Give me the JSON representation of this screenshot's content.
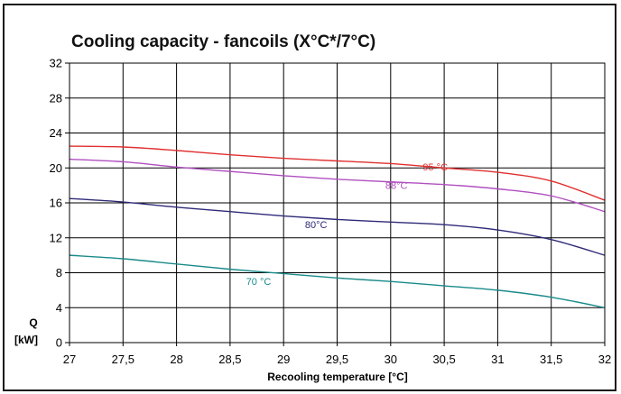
{
  "chart_data": {
    "type": "line",
    "title": "Cooling capacity - fancoils (X°C*/7°C)",
    "xlabel": "Recooling temperature [°C]",
    "ylabel_line1": "Q",
    "ylabel_line2": "[kW]",
    "xlim": [
      27,
      32
    ],
    "ylim": [
      0,
      32
    ],
    "grid": true,
    "x_ticks": [
      27,
      27.5,
      28,
      28.5,
      29,
      29.5,
      30,
      30.5,
      31,
      31.5,
      32
    ],
    "x_tick_labels": [
      "27",
      "27,5",
      "28",
      "28,5",
      "29",
      "29,5",
      "30",
      "30,5",
      "31",
      "31,5",
      "32"
    ],
    "y_ticks": [
      0,
      4,
      8,
      12,
      16,
      20,
      24,
      28,
      32
    ],
    "x": [
      27,
      27.5,
      28,
      28.5,
      29,
      29.5,
      30,
      30.5,
      31,
      31.5,
      32
    ],
    "series": [
      {
        "name": "95 °C",
        "color": "#e03030",
        "values": [
          22.5,
          22.4,
          22.0,
          21.5,
          21.1,
          20.8,
          20.5,
          20.0,
          19.5,
          18.5,
          16.3
        ],
        "label_at": [
          30.3,
          19.7
        ]
      },
      {
        "name": "88°C",
        "color": "#b050c0",
        "values": [
          21.0,
          20.7,
          20.1,
          19.6,
          19.1,
          18.7,
          18.4,
          18.1,
          17.6,
          16.8,
          15.0
        ],
        "label_at": [
          29.95,
          17.6
        ]
      },
      {
        "name": "80°C",
        "color": "#2e2a78",
        "values": [
          16.5,
          16.1,
          15.5,
          15.0,
          14.5,
          14.1,
          13.8,
          13.5,
          12.9,
          11.8,
          10.0
        ],
        "label_at": [
          29.2,
          13.1
        ]
      },
      {
        "name": "70 °C",
        "color": "#1a8a8a",
        "values": [
          10.0,
          9.6,
          9.0,
          8.4,
          7.9,
          7.4,
          7.0,
          6.5,
          6.0,
          5.2,
          4.0
        ],
        "label_at": [
          28.65,
          6.6
        ]
      }
    ]
  }
}
